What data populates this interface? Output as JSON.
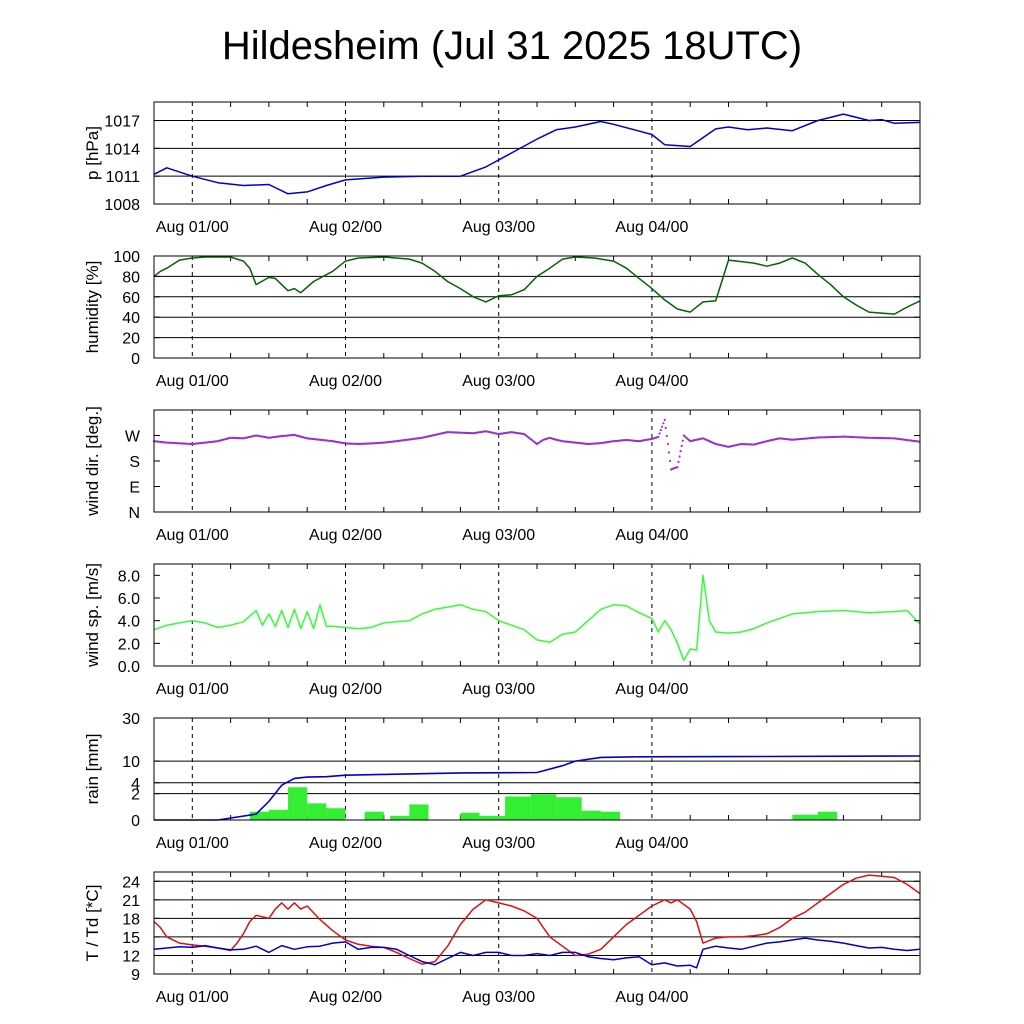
{
  "title": "Hildesheim (Jul 31 2025 18UTC)",
  "x_tick_labels": [
    "Aug 01/00",
    "Aug 02/00",
    "Aug 03/00",
    "Aug 04/00"
  ],
  "colors": {
    "pressure": "#0000cc",
    "humidity": "#006400",
    "wind_dir": "#9932cc",
    "wind_speed": "#33ff33",
    "rain_total": "#0000cc",
    "rain_bars": "#33ee33",
    "temperature": "#dd1111",
    "dewpoint": "#0000cc"
  },
  "chart_data": [
    {
      "type": "line",
      "ylabel": "p [hPa]",
      "x_unit": "hours since Jul 31 18UTC",
      "xlim": [
        0,
        120
      ],
      "ylim": [
        1008,
        1019
      ],
      "yticks": [
        1008,
        1011,
        1014,
        1017
      ],
      "ytick_labels": [
        "1008",
        "1011",
        "1014",
        "1017"
      ],
      "grid_y": [
        1011,
        1014,
        1017
      ],
      "series": [
        {
          "name": "pressure",
          "x": [
            0,
            2,
            6,
            10,
            14,
            18,
            21,
            24,
            27,
            30,
            36,
            42,
            48,
            52,
            56,
            60,
            63,
            66,
            70,
            72,
            78,
            80,
            84,
            88,
            90,
            93,
            96,
            100,
            104,
            108,
            112,
            114,
            116,
            120
          ],
          "y": [
            1011.2,
            1011.9,
            1011.0,
            1010.3,
            1010.0,
            1010.1,
            1009.1,
            1009.3,
            1010.0,
            1010.6,
            1010.9,
            1011.0,
            1011.0,
            1012.0,
            1013.5,
            1015.0,
            1016.0,
            1016.3,
            1016.9,
            1016.6,
            1015.5,
            1014.4,
            1014.2,
            1016.1,
            1016.3,
            1016.0,
            1016.2,
            1015.9,
            1017.0,
            1017.7,
            1017.0,
            1017.1,
            1016.7,
            1016.8
          ]
        }
      ]
    },
    {
      "type": "line",
      "ylabel": "humidity [%]",
      "xlim": [
        0,
        120
      ],
      "ylim": [
        0,
        100
      ],
      "yticks": [
        0,
        20,
        40,
        60,
        80,
        100
      ],
      "ytick_labels": [
        "0",
        "20",
        "40",
        "60",
        "80",
        "100"
      ],
      "grid_y": [
        20,
        40,
        60,
        80
      ],
      "series": [
        {
          "name": "humidity",
          "x": [
            0,
            1,
            2,
            4,
            6,
            8,
            10,
            12,
            14,
            15,
            16,
            18,
            19,
            21,
            22,
            23,
            25,
            28,
            30,
            32,
            36,
            40,
            42,
            44,
            46,
            48,
            50,
            52,
            54,
            56,
            58,
            60,
            62,
            64,
            66,
            69,
            72,
            74,
            76,
            78,
            80,
            82,
            84,
            86,
            88,
            90,
            94,
            96,
            98,
            100,
            102,
            104,
            106,
            108,
            110,
            112,
            114,
            116,
            118,
            120
          ],
          "y": [
            80,
            85,
            88,
            96,
            98,
            99,
            99,
            99,
            95,
            88,
            72,
            79,
            78,
            66,
            68,
            64,
            75,
            85,
            95,
            98,
            99,
            97,
            93,
            85,
            75,
            68,
            60,
            55,
            61,
            62,
            67,
            80,
            88,
            97,
            99,
            98,
            95,
            88,
            78,
            68,
            57,
            48,
            45,
            55,
            56,
            96,
            93,
            90,
            93,
            98,
            93,
            82,
            72,
            60,
            52,
            45,
            44,
            43,
            50,
            56
          ]
        }
      ]
    },
    {
      "type": "scatter",
      "ylabel": "wind dir. [deg.]",
      "xlim": [
        0,
        120
      ],
      "ylim": [
        0,
        360
      ],
      "yticks": [
        0,
        90,
        180,
        270
      ],
      "ytick_labels": [
        "N",
        "E",
        "S",
        "W"
      ],
      "series": [
        {
          "name": "wind direction",
          "x": [
            0,
            2,
            6,
            8,
            10,
            12,
            14,
            16,
            18,
            20,
            22,
            24,
            26,
            28,
            30,
            32,
            34,
            36,
            38,
            40,
            42,
            44,
            46,
            48,
            50,
            52,
            54,
            56,
            58,
            60,
            61,
            62,
            63,
            64,
            66,
            68,
            70,
            72,
            74,
            76,
            78,
            79,
            80,
            80.5,
            81,
            81.5,
            82,
            82.5,
            83,
            84,
            86,
            88,
            90,
            92,
            94,
            96,
            98,
            100,
            104,
            108,
            112,
            116,
            120
          ],
          "y": [
            250,
            245,
            240,
            245,
            250,
            262,
            260,
            270,
            262,
            268,
            272,
            260,
            255,
            250,
            242,
            240,
            242,
            245,
            250,
            256,
            262,
            272,
            282,
            280,
            278,
            285,
            275,
            282,
            275,
            240,
            255,
            262,
            255,
            250,
            245,
            240,
            243,
            250,
            254,
            250,
            258,
            265,
            325,
            240,
            150,
            155,
            158,
            215,
            270,
            250,
            260,
            240,
            230,
            240,
            238,
            250,
            260,
            255,
            263,
            266,
            262,
            260,
            248
          ]
        }
      ]
    },
    {
      "type": "line",
      "ylabel": "wind sp. [m/s]",
      "xlim": [
        0,
        120
      ],
      "ylim": [
        0,
        9
      ],
      "yticks": [
        0,
        2,
        4,
        6,
        8
      ],
      "ytick_labels": [
        "0.0",
        "2.0",
        "4.0",
        "6.0",
        "8.0"
      ],
      "series": [
        {
          "name": "wind speed",
          "x": [
            0,
            2,
            4,
            6,
            8,
            10,
            12,
            14,
            16,
            17,
            18,
            19,
            20,
            21,
            22,
            23,
            24,
            25,
            26,
            27,
            28,
            30,
            32,
            34,
            36,
            38,
            40,
            42,
            44,
            46,
            48,
            50,
            52,
            54,
            56,
            58,
            60,
            62,
            64,
            66,
            68,
            70,
            72,
            74,
            76,
            78,
            79,
            80,
            81,
            82,
            83,
            84,
            85,
            86,
            87,
            88,
            90,
            92,
            94,
            96,
            100,
            104,
            108,
            112,
            116,
            118,
            120
          ],
          "y": [
            3.2,
            3.6,
            3.8,
            4.0,
            3.8,
            3.4,
            3.6,
            3.9,
            4.9,
            3.6,
            4.6,
            3.5,
            4.9,
            3.4,
            5.0,
            3.3,
            4.8,
            3.3,
            5.4,
            3.5,
            3.5,
            3.4,
            3.3,
            3.4,
            3.8,
            3.9,
            4.0,
            4.6,
            5.0,
            5.2,
            5.4,
            5.0,
            4.8,
            4.0,
            3.6,
            3.2,
            2.3,
            2.1,
            2.8,
            3.0,
            4.0,
            5.0,
            5.4,
            5.3,
            4.7,
            4.2,
            3.0,
            4.0,
            3.2,
            2.0,
            0.5,
            1.5,
            1.4,
            8.0,
            4.0,
            3.0,
            2.9,
            3.0,
            3.3,
            3.8,
            4.6,
            4.8,
            4.9,
            4.7,
            4.8,
            4.9,
            3.7
          ]
        }
      ]
    },
    {
      "type": "bar",
      "ylabel": "rain [mm]",
      "xlim": [
        0,
        120
      ],
      "scale": "sqrt",
      "ylim": [
        0,
        30
      ],
      "yticks": [
        0,
        2,
        4,
        10,
        30
      ],
      "ytick_labels": [
        "0",
        "2",
        "4",
        "10",
        "30"
      ],
      "grid_y": [
        2,
        4,
        10
      ],
      "series": [
        {
          "name": "hourly rain",
          "x_start": [
            15,
            18,
            21,
            24,
            27,
            33,
            37,
            40,
            48,
            51,
            55,
            59,
            63,
            67,
            70,
            100,
            104
          ],
          "x_end": [
            18,
            21,
            24,
            27,
            30,
            36,
            40,
            43,
            51,
            55,
            59,
            63,
            67,
            70,
            73,
            104,
            107
          ],
          "values": [
            0.2,
            0.3,
            3.1,
            0.8,
            0.4,
            0.2,
            0.05,
            0.7,
            0.15,
            0.05,
            1.6,
            1.9,
            1.5,
            0.25,
            0.2,
            0.08,
            0.2
          ]
        },
        {
          "name": "accumulated rain",
          "x": [
            0,
            10,
            16,
            18,
            20,
            22,
            24,
            27,
            30,
            36,
            48,
            60,
            64,
            66,
            70,
            76,
            90,
            120
          ],
          "y": [
            0,
            0,
            0.1,
            1.0,
            3.5,
            5.0,
            5.3,
            5.4,
            5.8,
            6.0,
            6.4,
            6.5,
            8.5,
            10.0,
            11.3,
            11.5,
            11.6,
            11.8
          ]
        }
      ]
    },
    {
      "type": "line",
      "ylabel": "T / Td [*C]",
      "xlim": [
        0,
        120
      ],
      "ylim": [
        9,
        25.5
      ],
      "yticks": [
        9,
        12,
        15,
        18,
        21,
        24
      ],
      "ytick_labels": [
        "9",
        "12",
        "15",
        "18",
        "21",
        "24"
      ],
      "grid_y": [
        12,
        15,
        18,
        21,
        24
      ],
      "series": [
        {
          "name": "temperature",
          "x": [
            0,
            1,
            2,
            4,
            6,
            8,
            10,
            12,
            13,
            14,
            15,
            16,
            18,
            19,
            20,
            21,
            22,
            23,
            24,
            26,
            28,
            30,
            32,
            34,
            36,
            38,
            40,
            42,
            44,
            46,
            48,
            50,
            52,
            54,
            56,
            58,
            60,
            62,
            64,
            66,
            68,
            70,
            72,
            74,
            76,
            78,
            80,
            81,
            82,
            84,
            85,
            86,
            88,
            90,
            92,
            94,
            96,
            98,
            100,
            102,
            104,
            106,
            108,
            110,
            112,
            114,
            116,
            118,
            120
          ],
          "y": [
            17.5,
            16.5,
            15,
            14,
            13.7,
            13.5,
            13.2,
            12.8,
            14,
            15.5,
            17.5,
            18.5,
            18,
            19.5,
            20.5,
            19.5,
            20.5,
            19.5,
            20,
            17.8,
            16.0,
            14.5,
            13.8,
            13.5,
            13.3,
            12.5,
            11.5,
            10.6,
            11.0,
            13.5,
            17.0,
            19.5,
            21.0,
            20.5,
            20.0,
            19.2,
            18.0,
            15.0,
            13.5,
            12.0,
            12.2,
            13.0,
            15.0,
            17.0,
            18.5,
            20.0,
            21.0,
            20.5,
            21.0,
            19.5,
            17.5,
            14.0,
            14.8,
            15.0,
            15.0,
            15.2,
            15.5,
            16.5,
            18.0,
            19.0,
            20.5,
            22.0,
            23.5,
            24.5,
            25.0,
            24.8,
            24.6,
            23.5,
            22.0
          ]
        },
        {
          "name": "dewpoint",
          "x": [
            0,
            2,
            4,
            6,
            8,
            10,
            12,
            14,
            16,
            18,
            20,
            22,
            24,
            26,
            28,
            30,
            32,
            34,
            36,
            38,
            40,
            42,
            44,
            46,
            48,
            50,
            52,
            54,
            56,
            58,
            60,
            62,
            64,
            66,
            68,
            70,
            72,
            74,
            76,
            78,
            80,
            82,
            84,
            85,
            86,
            88,
            90,
            92,
            94,
            96,
            98,
            100,
            102,
            104,
            106,
            108,
            110,
            112,
            114,
            116,
            118,
            120
          ],
          "y": [
            13.0,
            13.2,
            13.4,
            13.3,
            13.6,
            13.2,
            12.9,
            13.0,
            13.5,
            12.5,
            13.6,
            13.0,
            13.4,
            13.5,
            14.0,
            14.2,
            13.0,
            13.3,
            13.3,
            13.0,
            12.0,
            11.0,
            10.5,
            11.5,
            12.5,
            12.0,
            12.5,
            12.5,
            12.0,
            12.0,
            12.3,
            12.0,
            12.5,
            12.5,
            11.8,
            11.5,
            11.3,
            11.6,
            11.8,
            10.5,
            10.8,
            10.3,
            10.4,
            10.0,
            13.0,
            13.5,
            13.2,
            13.0,
            13.5,
            14.0,
            14.2,
            14.5,
            14.8,
            14.5,
            14.3,
            14.0,
            13.6,
            13.2,
            13.3,
            13.0,
            12.8,
            13.0
          ]
        }
      ]
    }
  ]
}
